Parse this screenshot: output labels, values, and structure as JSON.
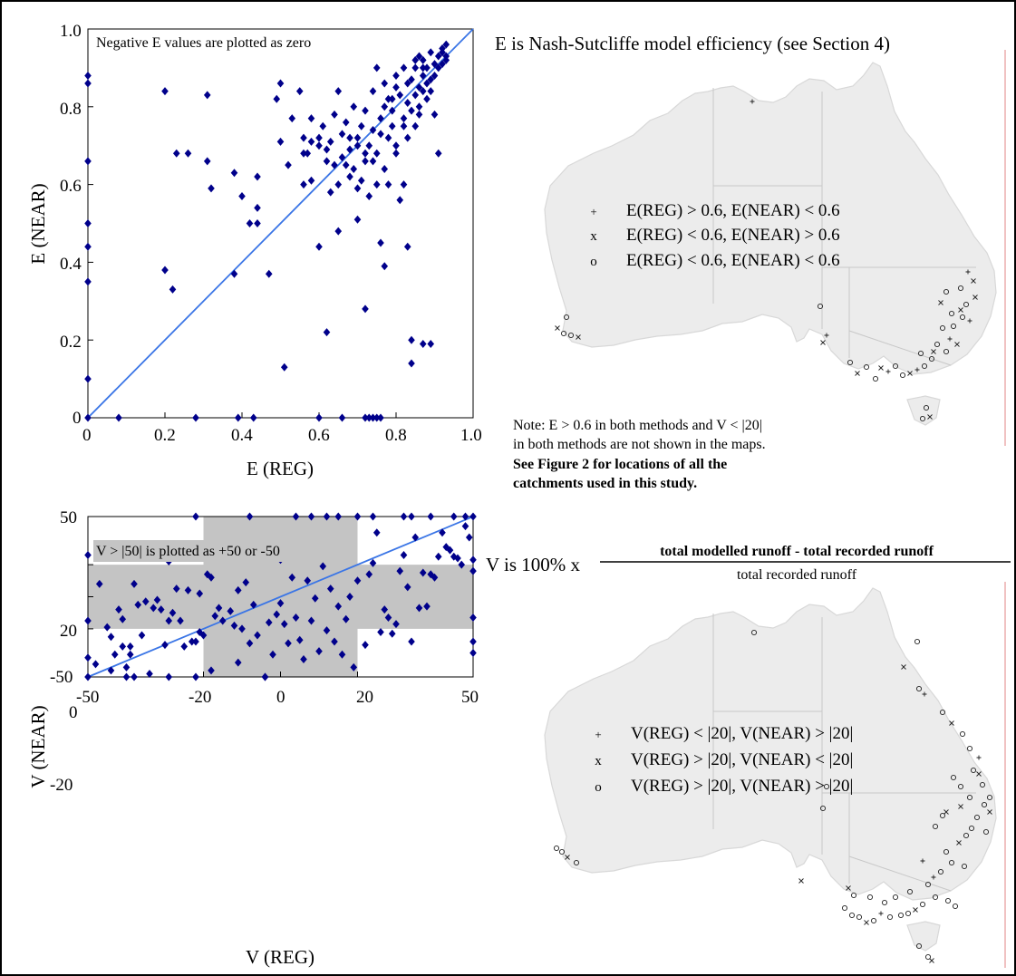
{
  "colors": {
    "points": "#00008b",
    "identity_line": "#3a75e6",
    "shading": "#c4c4c4",
    "map_fill": "#ececec",
    "map_border": "#c8c8c8",
    "accent_line": "#e8a0a0"
  },
  "chart_data": [
    {
      "type": "scatter",
      "xlabel": "E (REG)",
      "ylabel": "E (NEAR)",
      "xlim": [
        0,
        1.0
      ],
      "ylim": [
        0,
        1.0
      ],
      "x_ticks": [
        "0",
        "0.2",
        "0.4",
        "0.6",
        "0.8",
        "1.0"
      ],
      "y_ticks": [
        "0",
        "0.2",
        "0.4",
        "0.6",
        "0.8",
        "1.0"
      ],
      "annotation": "Negative E values are plotted as zero",
      "identity_line": true,
      "marker": "diamond",
      "points": [
        [
          0,
          0.88
        ],
        [
          0,
          0.86
        ],
        [
          0,
          0.66
        ],
        [
          0,
          0.5
        ],
        [
          0,
          0.44
        ],
        [
          0,
          0.35
        ],
        [
          0,
          0.1
        ],
        [
          0,
          0
        ],
        [
          0.08,
          0
        ],
        [
          0.28,
          0
        ],
        [
          0.39,
          0
        ],
        [
          0.43,
          0
        ],
        [
          0.6,
          0
        ],
        [
          0.66,
          0
        ],
        [
          0.72,
          0
        ],
        [
          0.73,
          0
        ],
        [
          0.74,
          0
        ],
        [
          0.75,
          0
        ],
        [
          0.76,
          0
        ],
        [
          0.2,
          0.84
        ],
        [
          0.2,
          0.38
        ],
        [
          0.22,
          0.33
        ],
        [
          0.23,
          0.68
        ],
        [
          0.26,
          0.68
        ],
        [
          0.31,
          0.66
        ],
        [
          0.31,
          0.83
        ],
        [
          0.32,
          0.59
        ],
        [
          0.38,
          0.37
        ],
        [
          0.38,
          0.63
        ],
        [
          0.4,
          0.57
        ],
        [
          0.42,
          0.5
        ],
        [
          0.44,
          0.5
        ],
        [
          0.44,
          0.62
        ],
        [
          0.44,
          0.54
        ],
        [
          0.47,
          0.37
        ],
        [
          0.49,
          0.82
        ],
        [
          0.5,
          0.86
        ],
        [
          0.5,
          0.71
        ],
        [
          0.51,
          0.13
        ],
        [
          0.52,
          0.65
        ],
        [
          0.53,
          0.77
        ],
        [
          0.55,
          0.84
        ],
        [
          0.56,
          0.72
        ],
        [
          0.56,
          0.6
        ],
        [
          0.57,
          0.68
        ],
        [
          0.58,
          0.61
        ],
        [
          0.58,
          0.77
        ],
        [
          0.6,
          0.44
        ],
        [
          0.6,
          0.7
        ],
        [
          0.61,
          0.75
        ],
        [
          0.62,
          0.22
        ],
        [
          0.62,
          0.66
        ],
        [
          0.63,
          0.71
        ],
        [
          0.63,
          0.58
        ],
        [
          0.64,
          0.78
        ],
        [
          0.65,
          0.6
        ],
        [
          0.65,
          0.48
        ],
        [
          0.65,
          0.84
        ],
        [
          0.66,
          0.73
        ],
        [
          0.67,
          0.65
        ],
        [
          0.67,
          0.76
        ],
        [
          0.68,
          0.69
        ],
        [
          0.68,
          0.62
        ],
        [
          0.69,
          0.64
        ],
        [
          0.69,
          0.8
        ],
        [
          0.7,
          0.72
        ],
        [
          0.7,
          0.51
        ],
        [
          0.7,
          0.59
        ],
        [
          0.71,
          0.75
        ],
        [
          0.71,
          0.61
        ],
        [
          0.72,
          0.28
        ],
        [
          0.72,
          0.66
        ],
        [
          0.72,
          0.79
        ],
        [
          0.73,
          0.57
        ],
        [
          0.73,
          0.7
        ],
        [
          0.74,
          0.74
        ],
        [
          0.74,
          0.84
        ],
        [
          0.75,
          0.6
        ],
        [
          0.75,
          0.9
        ],
        [
          0.75,
          0.68
        ],
        [
          0.76,
          0.45
        ],
        [
          0.76,
          0.77
        ],
        [
          0.77,
          0.64
        ],
        [
          0.77,
          0.86
        ],
        [
          0.77,
          0.39
        ],
        [
          0.78,
          0.72
        ],
        [
          0.78,
          0.6
        ],
        [
          0.78,
          0.82
        ],
        [
          0.79,
          0.79
        ],
        [
          0.79,
          0.75
        ],
        [
          0.8,
          0.68
        ],
        [
          0.8,
          0.88
        ],
        [
          0.8,
          0.7
        ],
        [
          0.81,
          0.83
        ],
        [
          0.81,
          0.56
        ],
        [
          0.82,
          0.77
        ],
        [
          0.82,
          0.75
        ],
        [
          0.82,
          0.6
        ],
        [
          0.83,
          0.81
        ],
        [
          0.83,
          0.86
        ],
        [
          0.83,
          0.72
        ],
        [
          0.83,
          0.44
        ],
        [
          0.84,
          0.79
        ],
        [
          0.84,
          0.2
        ],
        [
          0.84,
          0.14
        ],
        [
          0.85,
          0.83
        ],
        [
          0.85,
          0.75
        ],
        [
          0.85,
          0.9
        ],
        [
          0.85,
          0.92
        ],
        [
          0.86,
          0.85
        ],
        [
          0.86,
          0.8
        ],
        [
          0.86,
          0.78
        ],
        [
          0.87,
          0.88
        ],
        [
          0.87,
          0.84
        ],
        [
          0.87,
          0.19
        ],
        [
          0.87,
          0.92
        ],
        [
          0.88,
          0.9
        ],
        [
          0.88,
          0.82
        ],
        [
          0.88,
          0.86
        ],
        [
          0.89,
          0.94
        ],
        [
          0.89,
          0.87
        ],
        [
          0.89,
          0.19
        ],
        [
          0.89,
          0.84
        ],
        [
          0.9,
          0.91
        ],
        [
          0.9,
          0.88
        ],
        [
          0.9,
          0.78
        ],
        [
          0.91,
          0.9
        ],
        [
          0.91,
          0.93
        ],
        [
          0.91,
          0.68
        ],
        [
          0.92,
          0.91
        ],
        [
          0.92,
          0.94
        ],
        [
          0.92,
          0.95
        ],
        [
          0.93,
          0.92
        ],
        [
          0.93,
          0.96
        ],
        [
          0.93,
          0.93
        ],
        [
          0.86,
          0.93
        ],
        [
          0.87,
          0.9
        ],
        [
          0.84,
          0.87
        ],
        [
          0.82,
          0.9
        ],
        [
          0.8,
          0.85
        ],
        [
          0.79,
          0.82
        ],
        [
          0.77,
          0.8
        ],
        [
          0.76,
          0.73
        ],
        [
          0.74,
          0.66
        ],
        [
          0.72,
          0.68
        ],
        [
          0.7,
          0.7
        ],
        [
          0.68,
          0.72
        ],
        [
          0.66,
          0.67
        ],
        [
          0.64,
          0.65
        ],
        [
          0.62,
          0.69
        ],
        [
          0.6,
          0.72
        ],
        [
          0.58,
          0.71
        ],
        [
          0.56,
          0.68
        ]
      ]
    },
    {
      "type": "scatter",
      "xlabel": "V (REG)",
      "ylabel": "V (NEAR)",
      "xlim": [
        -50,
        50
      ],
      "ylim": [
        -50,
        50
      ],
      "x_ticks": [
        "-50",
        "-20",
        "0",
        "20",
        "50"
      ],
      "y_ticks": [
        "-50",
        "-20",
        "0",
        "20",
        "50"
      ],
      "annotation": "V > |50| is plotted as +50 or -50",
      "identity_line": true,
      "shaded_region": "|x| < 20 or |y| < 20",
      "marker": "diamond",
      "points": [
        [
          -50,
          -50
        ],
        [
          -50,
          -38
        ],
        [
          -50,
          -15
        ],
        [
          -50,
          26
        ],
        [
          -48,
          -42
        ],
        [
          -47,
          8
        ],
        [
          -45,
          -19
        ],
        [
          -44,
          -46
        ],
        [
          -44,
          -25
        ],
        [
          -43,
          -36
        ],
        [
          -42,
          -8
        ],
        [
          -41,
          -31
        ],
        [
          -41,
          -14
        ],
        [
          -40,
          -44
        ],
        [
          -40,
          -50
        ],
        [
          -39,
          -36
        ],
        [
          -39,
          -31
        ],
        [
          -38,
          8
        ],
        [
          -37,
          -5
        ],
        [
          -36,
          -24
        ],
        [
          -35,
          -3
        ],
        [
          -34,
          -48
        ],
        [
          -33,
          -7
        ],
        [
          -32,
          -2
        ],
        [
          -31,
          -8
        ],
        [
          -30,
          -30
        ],
        [
          -29,
          -15
        ],
        [
          -29,
          22
        ],
        [
          -28,
          -10
        ],
        [
          -27,
          5
        ],
        [
          -26,
          -15
        ],
        [
          -25,
          -31
        ],
        [
          -24,
          4
        ],
        [
          -23,
          -28
        ],
        [
          -22,
          -28
        ],
        [
          -21,
          -22
        ],
        [
          -21,
          2
        ],
        [
          -20,
          -24
        ],
        [
          -19,
          14
        ],
        [
          -19,
          28
        ],
        [
          -18,
          -46
        ],
        [
          -18,
          12
        ],
        [
          -17,
          -12
        ],
        [
          -16,
          -7
        ],
        [
          -15,
          -15
        ],
        [
          -14,
          28
        ],
        [
          -13,
          -9
        ],
        [
          -12,
          -18
        ],
        [
          -11,
          -41
        ],
        [
          -11,
          4
        ],
        [
          -10,
          -20
        ],
        [
          -9,
          9
        ],
        [
          -8,
          -29
        ],
        [
          -7,
          -5
        ],
        [
          -6,
          -24
        ],
        [
          -5,
          30
        ],
        [
          -4,
          -50
        ],
        [
          -3,
          -16
        ],
        [
          -2,
          -36
        ],
        [
          -1,
          -11
        ],
        [
          0,
          23
        ],
        [
          0,
          -4
        ],
        [
          1,
          -17
        ],
        [
          2,
          -29
        ],
        [
          3,
          12
        ],
        [
          4,
          -13
        ],
        [
          5,
          -27
        ],
        [
          6,
          -39
        ],
        [
          7,
          10
        ],
        [
          8,
          -15
        ],
        [
          9,
          -1
        ],
        [
          10,
          -34
        ],
        [
          11,
          19
        ],
        [
          12,
          -21
        ],
        [
          13,
          5
        ],
        [
          14,
          -28
        ],
        [
          15,
          -6
        ],
        [
          16,
          -36
        ],
        [
          17,
          -14
        ],
        [
          18,
          0
        ],
        [
          19,
          -44
        ],
        [
          20,
          10
        ],
        [
          22,
          -30
        ],
        [
          23,
          14
        ],
        [
          24,
          21
        ],
        [
          25,
          40
        ],
        [
          26,
          -22
        ],
        [
          27,
          -8
        ],
        [
          28,
          -13
        ],
        [
          29,
          -23
        ],
        [
          30,
          -17
        ],
        [
          31,
          16
        ],
        [
          32,
          26
        ],
        [
          33,
          6
        ],
        [
          34,
          -28
        ],
        [
          35,
          37
        ],
        [
          36,
          -7
        ],
        [
          37,
          15
        ],
        [
          38,
          -6
        ],
        [
          39,
          14
        ],
        [
          40,
          12
        ],
        [
          41,
          25
        ],
        [
          42,
          40
        ],
        [
          43,
          31
        ],
        [
          44,
          29
        ],
        [
          45,
          25
        ],
        [
          46,
          24
        ],
        [
          47,
          20
        ],
        [
          48,
          44
        ],
        [
          49,
          37
        ],
        [
          50,
          50
        ],
        [
          50,
          23
        ],
        [
          50,
          16
        ],
        [
          50,
          -13
        ],
        [
          50,
          -28
        ],
        [
          50,
          -35
        ],
        [
          -22,
          -50
        ],
        [
          -38,
          -50
        ],
        [
          -29,
          -50
        ],
        [
          -4,
          -50
        ],
        [
          -22,
          50
        ],
        [
          -8,
          50
        ],
        [
          4,
          50
        ],
        [
          8,
          50
        ],
        [
          12,
          50
        ],
        [
          15,
          50
        ],
        [
          20,
          50
        ],
        [
          24,
          50
        ],
        [
          32,
          50
        ],
        [
          34,
          50
        ],
        [
          39,
          50
        ],
        [
          45,
          50
        ],
        [
          48,
          50
        ]
      ]
    }
  ],
  "maps": {
    "top": {
      "title": "E is Nash-Sutcliffe model efficiency (see Section 4)",
      "legend": [
        {
          "symbol": "+",
          "text": "E(REG) > 0.6,  E(NEAR) < 0.6"
        },
        {
          "symbol": "x",
          "text": "E(REG) < 0.6,  E(NEAR) > 0.6"
        },
        {
          "symbol": "o",
          "text": "E(REG) < 0.6,  E(NEAR) < 0.6"
        }
      ],
      "note_line1": "Note: E > 0.6 in both methods and V < |20|",
      "note_line2": "in both methods are not shown in the maps.",
      "note_line3": "See Figure 2 for locations of all the",
      "note_line4": "catchments used in this study."
    },
    "bottom": {
      "formula_prefix": "V is 100% x",
      "numerator": "total modelled runoff - total recorded runoff",
      "denominator": "total recorded runoff",
      "legend": [
        {
          "symbol": "+",
          "text": "V(REG) < |20|,  V(NEAR) > |20|"
        },
        {
          "symbol": "x",
          "text": "V(REG) > |20|,  V(NEAR) < |20|"
        },
        {
          "symbol": "o",
          "text": "V(REG) > |20|,  V(NEAR) > |20|"
        }
      ]
    }
  }
}
